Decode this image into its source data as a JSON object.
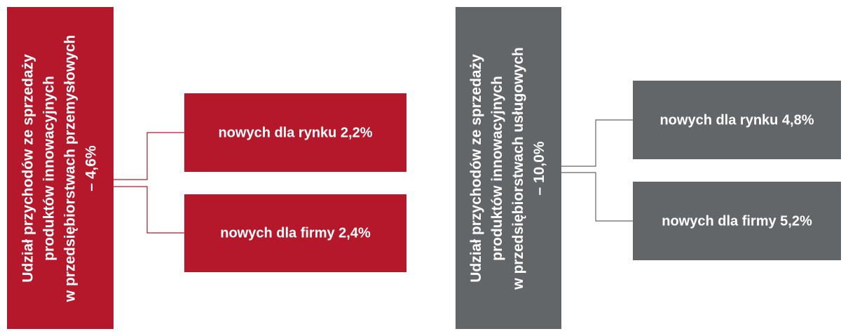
{
  "groups": [
    {
      "lines": [
        "Udział przychodów ze sprzedaży",
        "produktów innowacyjnych",
        "w przedsiębiorstwach przemysłowych",
        "– 4,6%"
      ],
      "children": [
        "nowych dla rynku 2,2%",
        "nowych dla firmy 2,4%"
      ]
    },
    {
      "lines": [
        "Udział przychodów ze sprzedaży",
        "produktów innowacyjnych",
        "w przedsiębiorstwach usługowych",
        "– 10,0%"
      ],
      "children": [
        "nowych dla rynku 4,8%",
        "nowych dla firmy 5,2%"
      ]
    }
  ]
}
